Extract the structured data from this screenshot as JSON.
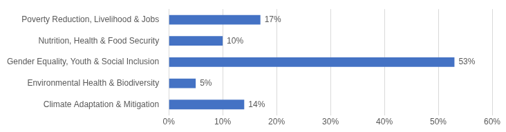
{
  "chart_data": {
    "type": "bar",
    "orientation": "horizontal",
    "categories": [
      "Poverty Reduction, Livelihood & Jobs",
      "Nutrition, Health & Food Security",
      "Gender Equality, Youth & Social Inclusion",
      "Environmental Health & Biodiversity",
      "Climate Adaptation & Mitigation"
    ],
    "values": [
      17,
      10,
      53,
      5,
      14
    ],
    "value_labels": [
      "17%",
      "10%",
      "53%",
      "5%",
      "14%"
    ],
    "data_labels": true,
    "color": "#4472c4",
    "xlim": [
      0,
      60
    ],
    "xticks": [
      {
        "value": 0,
        "label": "0%"
      },
      {
        "value": 10,
        "label": "10%"
      },
      {
        "value": 20,
        "label": "20%"
      },
      {
        "value": 30,
        "label": "30%"
      },
      {
        "value": 40,
        "label": "40%"
      },
      {
        "value": 50,
        "label": "50%"
      },
      {
        "value": 60,
        "label": "60%"
      }
    ],
    "grid": true
  }
}
